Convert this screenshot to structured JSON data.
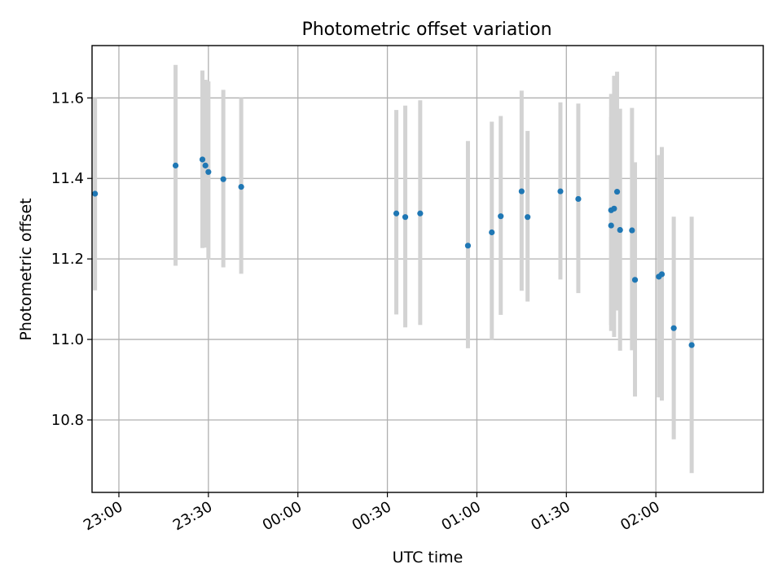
{
  "chart_data": {
    "type": "scatter",
    "title": "Photometric offset variation",
    "xlabel": "UTC time",
    "ylabel": "Photometric offset",
    "x_unit": "UTC time (hh:mm)",
    "xlim": [
      "22:51",
      "02:36"
    ],
    "ylim": [
      10.62,
      11.73
    ],
    "x_ticks": [
      "23:00",
      "23:30",
      "00:00",
      "00:30",
      "01:00",
      "01:30",
      "02:00"
    ],
    "y_ticks": [
      10.8,
      11.0,
      11.2,
      11.4,
      11.6
    ],
    "grid": true,
    "legend": "none",
    "marker_color": "#1f77b4",
    "errorbar_color": "#d3d3d3",
    "series": [
      {
        "points": [
          {
            "x": "22:52",
            "y": 11.362,
            "ylo": 11.122,
            "yhi": 11.6
          },
          {
            "x": "23:19",
            "y": 11.432,
            "ylo": 11.183,
            "yhi": 11.682
          },
          {
            "x": "23:28",
            "y": 11.447,
            "ylo": 11.227,
            "yhi": 11.668
          },
          {
            "x": "23:29",
            "y": 11.432,
            "ylo": 11.228,
            "yhi": 11.645
          },
          {
            "x": "23:30",
            "y": 11.416,
            "ylo": 11.199,
            "yhi": 11.641
          },
          {
            "x": "23:35",
            "y": 11.398,
            "ylo": 11.179,
            "yhi": 11.62
          },
          {
            "x": "23:41",
            "y": 11.379,
            "ylo": 11.163,
            "yhi": 11.6
          },
          {
            "x": "00:33",
            "y": 11.313,
            "ylo": 11.062,
            "yhi": 11.57
          },
          {
            "x": "00:36",
            "y": 11.304,
            "ylo": 11.03,
            "yhi": 11.581
          },
          {
            "x": "00:41",
            "y": 11.313,
            "ylo": 11.036,
            "yhi": 11.594
          },
          {
            "x": "00:57",
            "y": 11.233,
            "ylo": 10.978,
            "yhi": 11.493
          },
          {
            "x": "01:05",
            "y": 11.266,
            "ylo": 10.998,
            "yhi": 11.541
          },
          {
            "x": "01:08",
            "y": 11.306,
            "ylo": 11.061,
            "yhi": 11.555
          },
          {
            "x": "01:15",
            "y": 11.368,
            "ylo": 11.121,
            "yhi": 11.618
          },
          {
            "x": "01:17",
            "y": 11.304,
            "ylo": 11.094,
            "yhi": 11.518
          },
          {
            "x": "01:28",
            "y": 11.368,
            "ylo": 11.149,
            "yhi": 11.589
          },
          {
            "x": "01:34",
            "y": 11.349,
            "ylo": 11.115,
            "yhi": 11.586
          },
          {
            "x": "01:45",
            "y": 11.321,
            "ylo": 11.036,
            "yhi": 11.61
          },
          {
            "x": "01:45",
            "y": 11.283,
            "ylo": 11.021,
            "yhi": 11.552
          },
          {
            "x": "01:46",
            "y": 11.325,
            "ylo": 11.006,
            "yhi": 11.655
          },
          {
            "x": "01:47",
            "y": 11.367,
            "ylo": 11.072,
            "yhi": 11.665
          },
          {
            "x": "01:48",
            "y": 11.272,
            "ylo": 10.972,
            "yhi": 11.573
          },
          {
            "x": "01:52",
            "y": 11.271,
            "ylo": 10.973,
            "yhi": 11.575
          },
          {
            "x": "01:53",
            "y": 11.148,
            "ylo": 10.858,
            "yhi": 11.44
          },
          {
            "x": "02:01",
            "y": 11.156,
            "ylo": 10.856,
            "yhi": 11.458
          },
          {
            "x": "02:02",
            "y": 11.162,
            "ylo": 10.848,
            "yhi": 11.478
          },
          {
            "x": "02:06",
            "y": 11.028,
            "ylo": 10.752,
            "yhi": 11.305
          },
          {
            "x": "02:12",
            "y": 10.986,
            "ylo": 10.668,
            "yhi": 11.305
          }
        ]
      }
    ]
  }
}
